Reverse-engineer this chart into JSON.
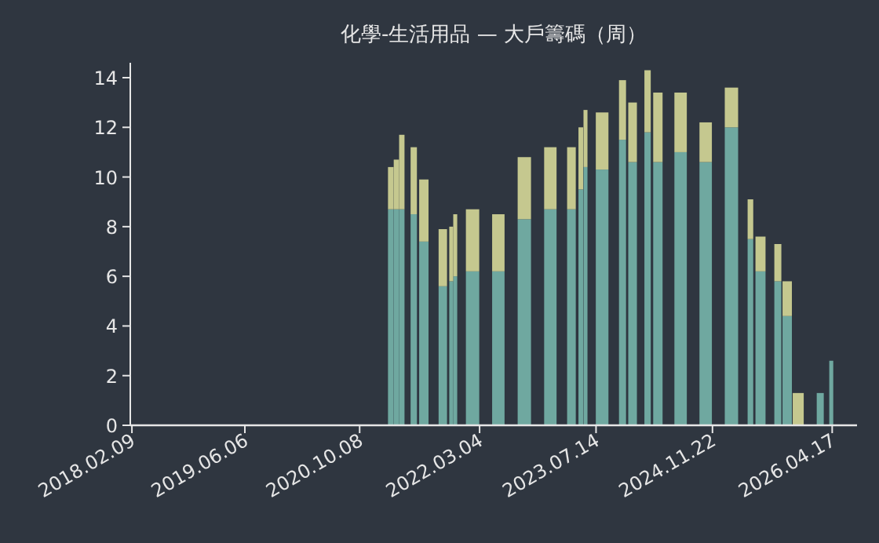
{
  "chart_data": {
    "type": "bar",
    "stacked": true,
    "title": "化學-生活用品 — 大戶籌碼（周）",
    "x": [
      "2021-02-18",
      "2021-03-14",
      "2021-04-06",
      "2021-04-30",
      "2021-05-27",
      "2021-07-09",
      "2021-08-18",
      "2021-09-28",
      "2021-11-03",
      "2021-11-20",
      "2021-12-07",
      "2022-02-02",
      "2022-03-31",
      "2022-05-23",
      "2022-07-16",
      "2022-09-11",
      "2022-11-07",
      "2022-12-31",
      "2023-02-22",
      "2023-03-31",
      "2023-05-10",
      "2023-05-30",
      "2023-06-16",
      "2023-08-09",
      "2023-10-05",
      "2023-11-04",
      "2023-12-17",
      "2024-01-23",
      "2024-02-19",
      "2024-04-03",
      "2024-05-13",
      "2024-07-09",
      "2024-08-31",
      "2024-10-24",
      "2024-12-16",
      "2025-02-11",
      "2025-04-09",
      "2025-05-03",
      "2025-06-15",
      "2025-07-29",
      "2025-08-28",
      "2025-10-07",
      "2025-11-23",
      "2026-01-09",
      "2026-02-25",
      "2026-03-27",
      "2026-04-13"
    ],
    "series": [
      {
        "color": "#6fa8a0",
        "values": [
          8.7,
          8.7,
          8.7,
          null,
          8.5,
          7.4,
          null,
          5.6,
          5.8,
          6.0,
          null,
          6.2,
          null,
          6.2,
          null,
          8.3,
          null,
          8.7,
          null,
          8.7,
          9.5,
          10.4,
          null,
          10.3,
          null,
          11.5,
          10.6,
          null,
          11.8,
          10.6,
          null,
          11.0,
          null,
          10.6,
          null,
          12.0,
          null,
          7.5,
          6.2,
          null,
          5.8,
          4.4,
          0,
          null,
          1.3,
          null,
          2.6
        ]
      },
      {
        "color": "#c5c88f",
        "values": [
          1.7,
          2.0,
          3.0,
          null,
          2.7,
          2.5,
          null,
          2.3,
          2.2,
          2.5,
          null,
          2.5,
          null,
          2.3,
          null,
          2.5,
          null,
          2.5,
          null,
          2.5,
          2.5,
          2.3,
          null,
          2.3,
          null,
          2.4,
          2.4,
          null,
          2.5,
          2.8,
          null,
          2.4,
          null,
          1.6,
          null,
          1.6,
          null,
          1.6,
          1.4,
          null,
          1.5,
          1.4,
          1.3,
          null,
          0,
          null,
          0
        ]
      }
    ],
    "xlim": [
      "2018-02-02",
      "2026-08-01"
    ],
    "xticks": [
      {
        "value": "2018-02-09",
        "label": "2018.02.09"
      },
      {
        "value": "2019-06-06",
        "label": "2019.06.06"
      },
      {
        "value": "2020-10-08",
        "label": "2020.10.08"
      },
      {
        "value": "2022-03-04",
        "label": "2022.03.04"
      },
      {
        "value": "2023-07-14",
        "label": "2023.07.14"
      },
      {
        "value": "2024-11-22",
        "label": "2024.11.22"
      },
      {
        "value": "2026-04-17",
        "label": "2026.04.17"
      }
    ],
    "ylim": [
      0,
      14.6
    ],
    "yticks": [
      0,
      2,
      4,
      6,
      8,
      10,
      12,
      14
    ],
    "grid": false
  }
}
